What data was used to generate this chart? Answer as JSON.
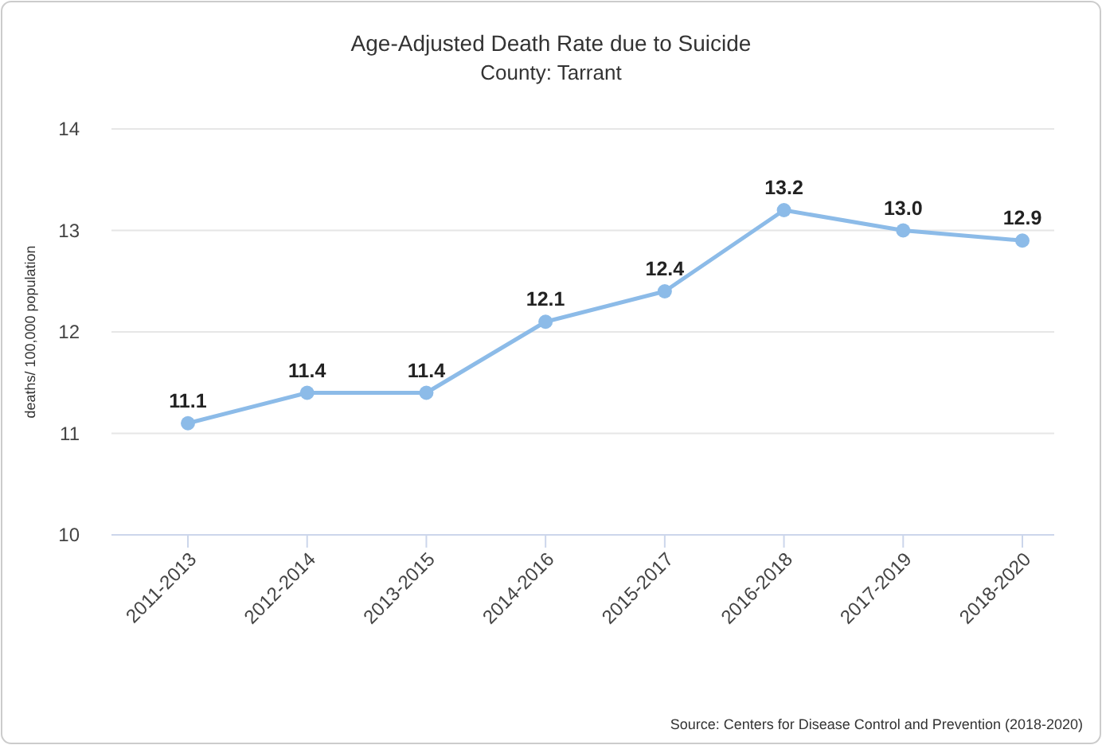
{
  "chart_data": {
    "type": "line",
    "title": "Age-Adjusted Death Rate due to Suicide",
    "subtitle": "County: Tarrant",
    "ylabel": "deaths/ 100,000 population",
    "categories": [
      "2011-2013",
      "2012-2014",
      "2013-2015",
      "2014-2016",
      "2015-2017",
      "2016-2018",
      "2017-2019",
      "2018-2020"
    ],
    "series": [
      {
        "color": "#8cbbe8",
        "values": [
          11.1,
          11.4,
          11.4,
          12.1,
          12.4,
          13.2,
          13.0,
          12.9
        ],
        "value_labels": [
          "11.1",
          "11.4",
          "11.4",
          "12.1",
          "12.4",
          "13.2",
          "13.0",
          "12.9"
        ]
      }
    ],
    "ylim": [
      10,
      14
    ],
    "yticks": [
      10,
      11,
      12,
      13,
      14
    ],
    "grid": "y",
    "marker": "circle",
    "line_style": "solid",
    "annotations": [
      "Source: Centers for Disease Control and Prevention (2018-2020)"
    ]
  }
}
